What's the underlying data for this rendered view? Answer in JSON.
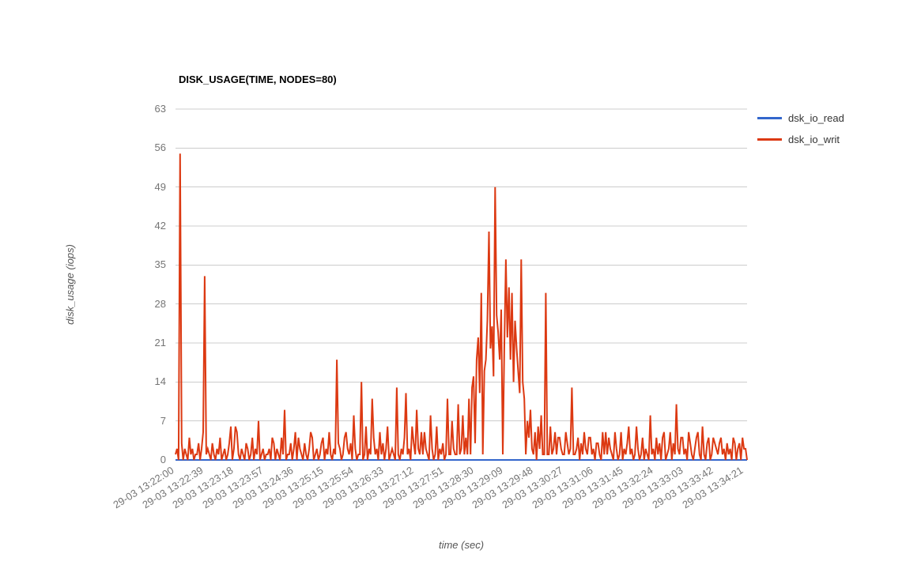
{
  "accent_colors": {
    "read": "#3366cc",
    "write": "#dc3912",
    "gridline": "#cccccc",
    "tick_text": "#757575"
  },
  "chart_data": {
    "type": "line",
    "title": "DISK_USAGE(TIME, NODES=80)",
    "xlabel": "time (sec)",
    "ylabel": "disk_usage (iops)",
    "grid": "horizontal-only",
    "legend_position": "right-top",
    "y_ticks": [
      0,
      7,
      14,
      21,
      28,
      35,
      42,
      49,
      56,
      63
    ],
    "y_range": [
      0,
      63
    ],
    "x_range": [
      0,
      744
    ],
    "x_tick_interval_sec": 39,
    "x_tick_labels": [
      "29-03 13:22:00",
      "29-03 13:22:39",
      "29-03 13:23:18",
      "29-03 13:23:57",
      "29-03 13:24:36",
      "29-03 13:25:15",
      "29-03 13:25:54",
      "29-03 13:26:33",
      "29-03 13:27:12",
      "29-03 13:27:51",
      "29-03 13:28:30",
      "29-03 13:29:09",
      "29-03 13:29:48",
      "29-03 13:30:27",
      "29-03 13:31:06",
      "29-03 13:31:45",
      "29-03 13:32:24",
      "29-03 13:33:03",
      "29-03 13:33:42",
      "29-03 13:34:21"
    ],
    "sample_step_sec": 2,
    "series": [
      {
        "name": "dsk_io_read",
        "color": "#3366cc",
        "shape": "flat",
        "flat_value": 0
      },
      {
        "name": "dsk_io_writ",
        "color": "#dc3912",
        "shape": "spiky",
        "baseline_pattern": [
          1,
          2,
          0,
          1,
          3,
          0,
          2,
          1,
          0,
          4,
          1,
          2,
          0,
          1,
          1,
          3,
          0,
          2,
          5,
          0,
          1,
          2,
          1,
          0,
          3,
          1,
          0,
          2,
          1,
          4,
          0,
          1,
          2,
          0,
          1,
          3,
          1,
          0,
          2,
          1,
          5,
          1,
          0,
          2,
          1,
          0,
          3,
          2,
          0,
          1,
          4,
          0,
          2,
          1,
          3,
          0,
          1,
          2,
          0,
          1
        ],
        "elevated_ranges": [
          [
            352,
            462
          ],
          [
            478,
            520
          ]
        ],
        "spikes": [
          [
            5,
            55
          ],
          [
            38,
            33
          ],
          [
            72,
            6
          ],
          [
            78,
            6
          ],
          [
            108,
            7
          ],
          [
            126,
            4
          ],
          [
            142,
            9
          ],
          [
            160,
            4
          ],
          [
            176,
            5
          ],
          [
            192,
            4
          ],
          [
            209,
            18
          ],
          [
            222,
            5
          ],
          [
            232,
            8
          ],
          [
            241,
            14
          ],
          [
            248,
            6
          ],
          [
            256,
            11
          ],
          [
            266,
            5
          ],
          [
            275,
            6
          ],
          [
            288,
            13
          ],
          [
            299,
            12
          ],
          [
            307,
            6
          ],
          [
            314,
            9
          ],
          [
            323,
            5
          ],
          [
            331,
            8
          ],
          [
            340,
            6
          ],
          [
            353,
            11
          ],
          [
            360,
            7
          ],
          [
            367,
            10
          ],
          [
            374,
            8
          ],
          [
            381,
            11
          ],
          [
            385,
            13
          ],
          [
            387,
            15
          ],
          [
            391,
            18
          ],
          [
            393,
            22
          ],
          [
            395,
            12
          ],
          [
            397,
            30
          ],
          [
            401,
            16
          ],
          [
            403,
            18
          ],
          [
            405,
            25
          ],
          [
            407,
            41
          ],
          [
            409,
            20
          ],
          [
            411,
            24
          ],
          [
            413,
            15
          ],
          [
            416,
            49
          ],
          [
            418,
            26
          ],
          [
            420,
            23
          ],
          [
            422,
            18
          ],
          [
            424,
            27
          ],
          [
            427,
            20
          ],
          [
            429,
            36
          ],
          [
            431,
            22
          ],
          [
            433,
            31
          ],
          [
            435,
            18
          ],
          [
            437,
            30
          ],
          [
            439,
            14
          ],
          [
            441,
            25
          ],
          [
            443,
            20
          ],
          [
            445,
            16
          ],
          [
            447,
            12
          ],
          [
            449,
            36
          ],
          [
            452,
            14
          ],
          [
            454,
            11
          ],
          [
            458,
            7
          ],
          [
            461,
            9
          ],
          [
            467,
            5
          ],
          [
            471,
            6
          ],
          [
            475,
            8
          ],
          [
            482,
            30
          ],
          [
            488,
            6
          ],
          [
            494,
            5
          ],
          [
            500,
            4
          ],
          [
            508,
            5
          ],
          [
            516,
            13
          ],
          [
            524,
            4
          ],
          [
            532,
            5
          ],
          [
            540,
            4
          ],
          [
            548,
            3
          ],
          [
            556,
            5
          ],
          [
            564,
            4
          ],
          [
            572,
            5
          ],
          [
            580,
            5
          ],
          [
            590,
            6
          ],
          [
            600,
            6
          ],
          [
            608,
            4
          ],
          [
            617,
            8
          ],
          [
            626,
            4
          ],
          [
            634,
            4
          ],
          [
            643,
            5
          ],
          [
            652,
            10
          ],
          [
            660,
            4
          ],
          [
            668,
            5
          ],
          [
            677,
            4
          ],
          [
            686,
            6
          ],
          [
            694,
            4
          ],
          [
            702,
            3
          ],
          [
            710,
            4
          ],
          [
            718,
            3
          ],
          [
            726,
            4
          ],
          [
            734,
            3
          ],
          [
            740,
            2
          ]
        ]
      }
    ]
  }
}
